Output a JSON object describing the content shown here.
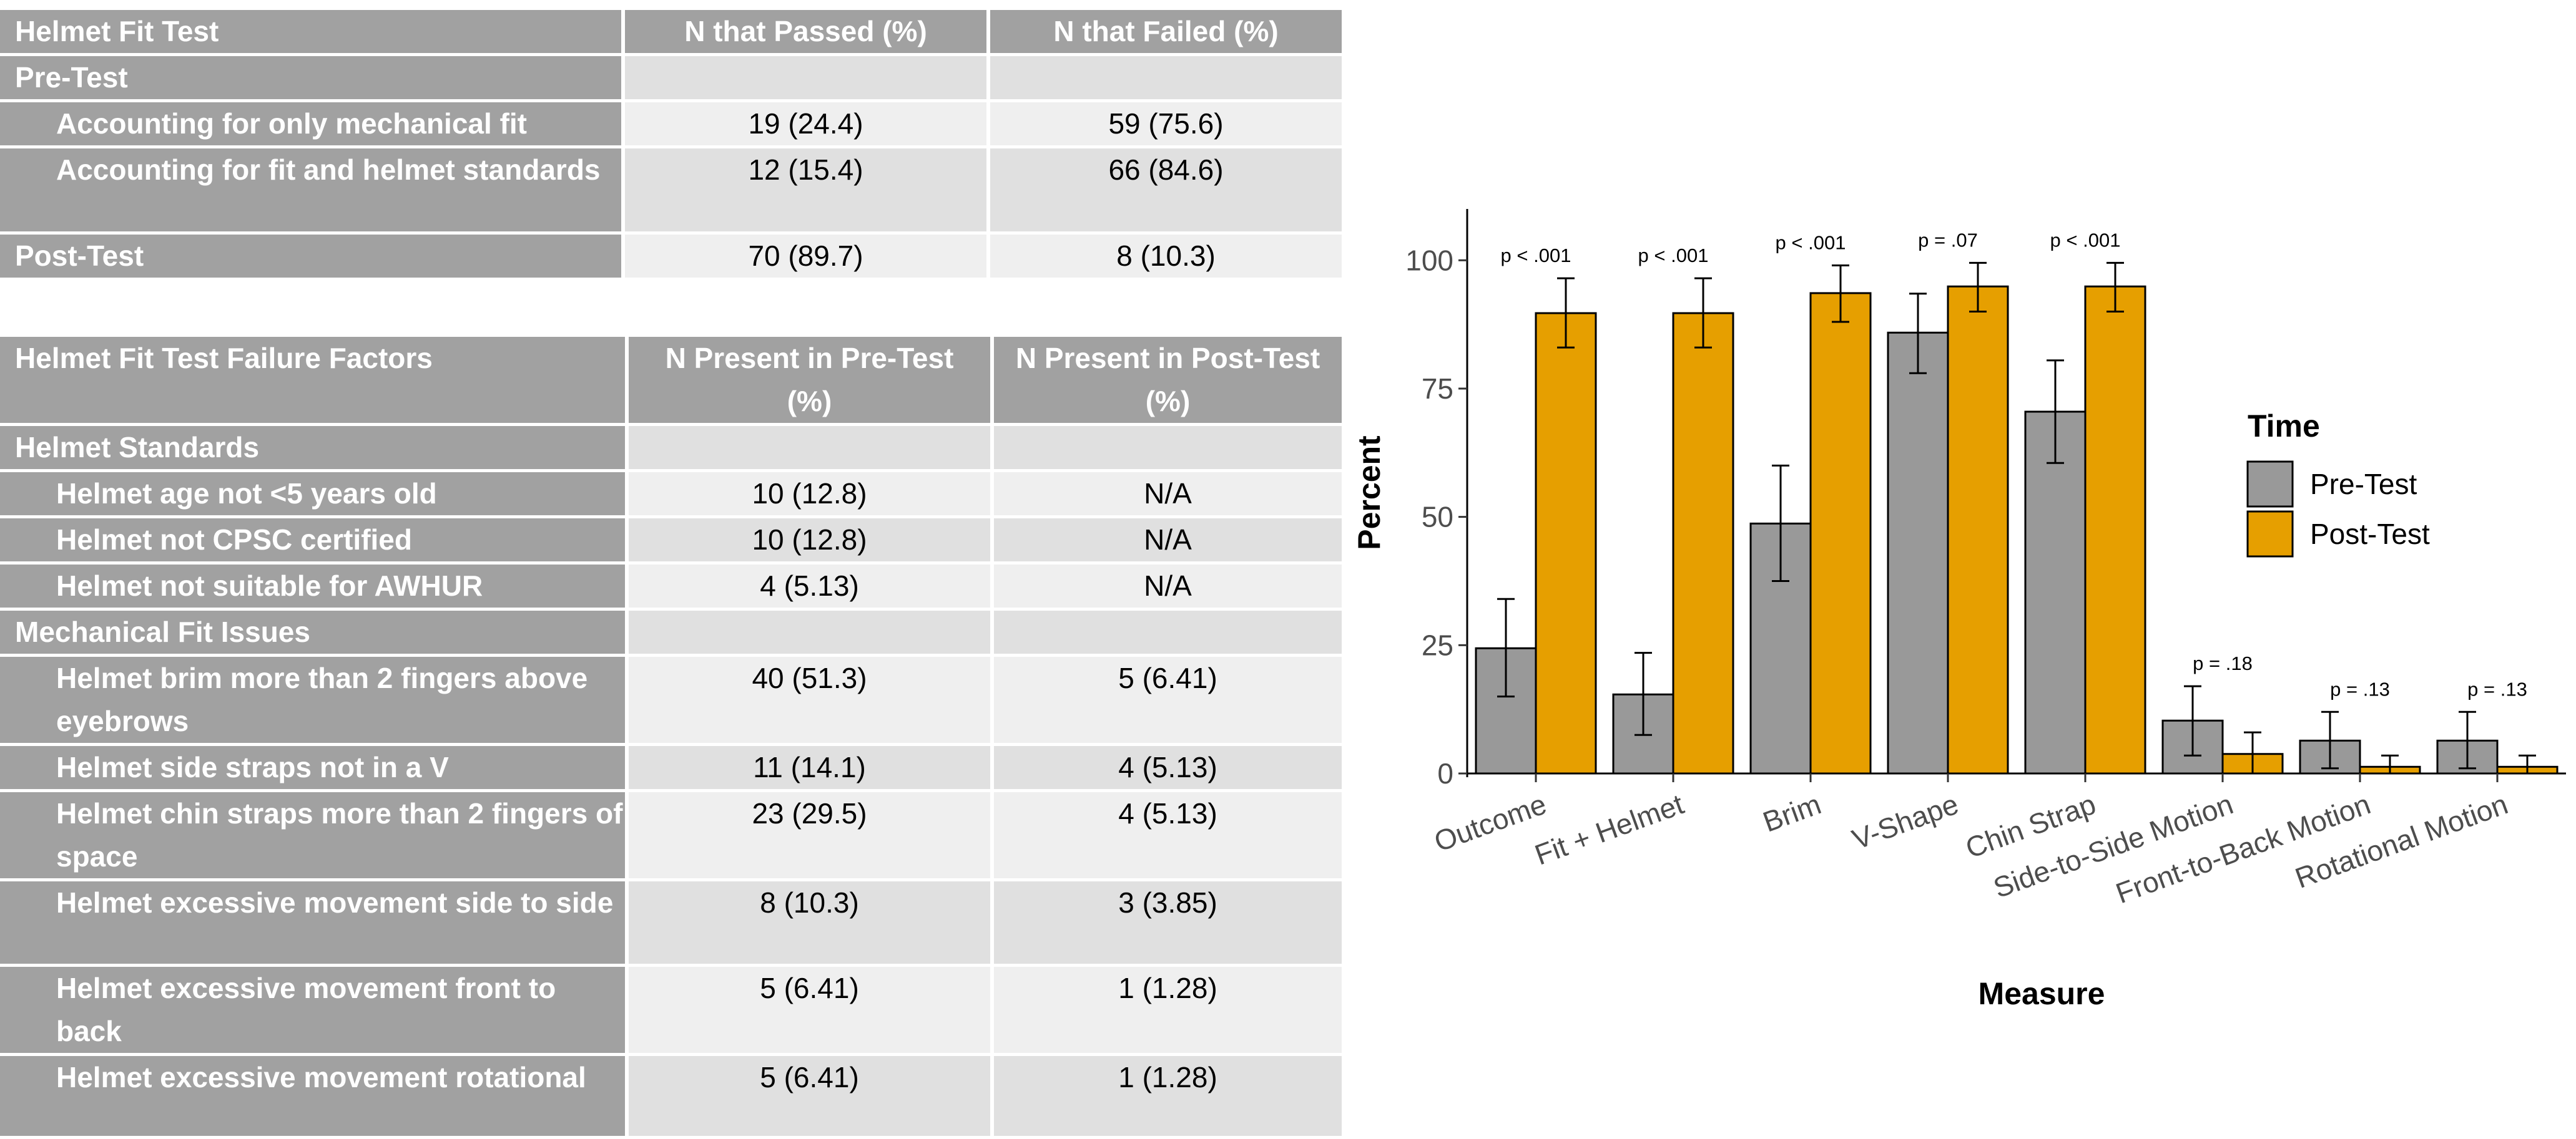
{
  "table1": {
    "headers": [
      "Helmet Fit Test",
      "N that Passed (%)",
      "N that Failed (%)"
    ],
    "rows": [
      {
        "label": "Pre-Test",
        "passed": "",
        "failed": ""
      },
      {
        "label": "Accounting for only mechanical fit",
        "passed": "19 (24.4)",
        "failed": "59 (75.6)"
      },
      {
        "label": "Accounting for fit and helmet standards",
        "passed": "12 (15.4)",
        "failed": "66 (84.6)"
      },
      {
        "label": "Post-Test",
        "passed": "70 (89.7)",
        "failed": "8 (10.3)"
      }
    ]
  },
  "table2": {
    "headers": [
      "Helmet Fit Test Failure Factors",
      "N Present in Pre-Test (%)",
      "N Present in Post-Test (%)"
    ],
    "rows": [
      {
        "label": "Helmet Standards",
        "pre": "",
        "post": ""
      },
      {
        "label": "Helmet age not <5 years old",
        "pre": "10 (12.8)",
        "post": "N/A"
      },
      {
        "label": "Helmet not CPSC certified",
        "pre": "10 (12.8)",
        "post": "N/A"
      },
      {
        "label": "Helmet not suitable for AWHUR",
        "pre": "4 (5.13)",
        "post": "N/A"
      },
      {
        "label": "Mechanical Fit Issues",
        "pre": "",
        "post": ""
      },
      {
        "label": "Helmet brim more than 2 fingers above eyebrows",
        "pre": "40 (51.3)",
        "post": "5 (6.41)"
      },
      {
        "label": "Helmet side straps not in a V",
        "pre": "11 (14.1)",
        "post": "4 (5.13)"
      },
      {
        "label": "Helmet chin straps more than 2 fingers of space",
        "pre": "23 (29.5)",
        "post": "4 (5.13)"
      },
      {
        "label": "Helmet excessive movement side to side",
        "pre": "8 (10.3)",
        "post": "3 (3.85)"
      },
      {
        "label": "Helmet excessive movement front to back",
        "pre": "5 (6.41)",
        "post": "1 (1.28)"
      },
      {
        "label": "Helmet excessive movement rotational",
        "pre": "5 (6.41)",
        "post": "1 (1.28)"
      }
    ]
  },
  "chart_data": {
    "type": "bar",
    "xlabel": "Measure",
    "ylabel": "Percent",
    "ylim": [
      0,
      110
    ],
    "yticks": [
      0,
      25,
      50,
      75,
      100
    ],
    "legend_title": "Time",
    "legend_position": "right",
    "grid": false,
    "categories": [
      "Outcome",
      "Fit + Helmet",
      "Brim",
      "V-Shape",
      "Chin Strap",
      "Side-to-Side Motion",
      "Front-to-Back Motion",
      "Rotational Motion"
    ],
    "pvalues": [
      "p < .001",
      "p < .001",
      "p < .001",
      "p = .07",
      "p < .001",
      "p = .18",
      "p = .13",
      "p = .13"
    ],
    "series": [
      {
        "name": "Pre-Test",
        "color": "#999999",
        "values": [
          24.4,
          15.4,
          48.7,
          85.9,
          70.5,
          10.3,
          6.4,
          6.4
        ],
        "err_low": [
          15.0,
          7.5,
          37.5,
          78.0,
          60.5,
          3.5,
          1.0,
          1.0
        ],
        "err_high": [
          34.0,
          23.5,
          60.0,
          93.5,
          80.5,
          17.0,
          12.0,
          12.0
        ]
      },
      {
        "name": "Post-Test",
        "color": "#E69F00",
        "values": [
          89.7,
          89.7,
          93.6,
          94.9,
          94.9,
          3.8,
          1.3,
          1.3
        ],
        "err_low": [
          83.0,
          83.0,
          88.0,
          90.0,
          90.0,
          0.0,
          0.0,
          0.0
        ],
        "err_high": [
          96.5,
          96.5,
          99.0,
          99.5,
          99.5,
          8.0,
          3.5,
          3.5
        ]
      }
    ]
  }
}
